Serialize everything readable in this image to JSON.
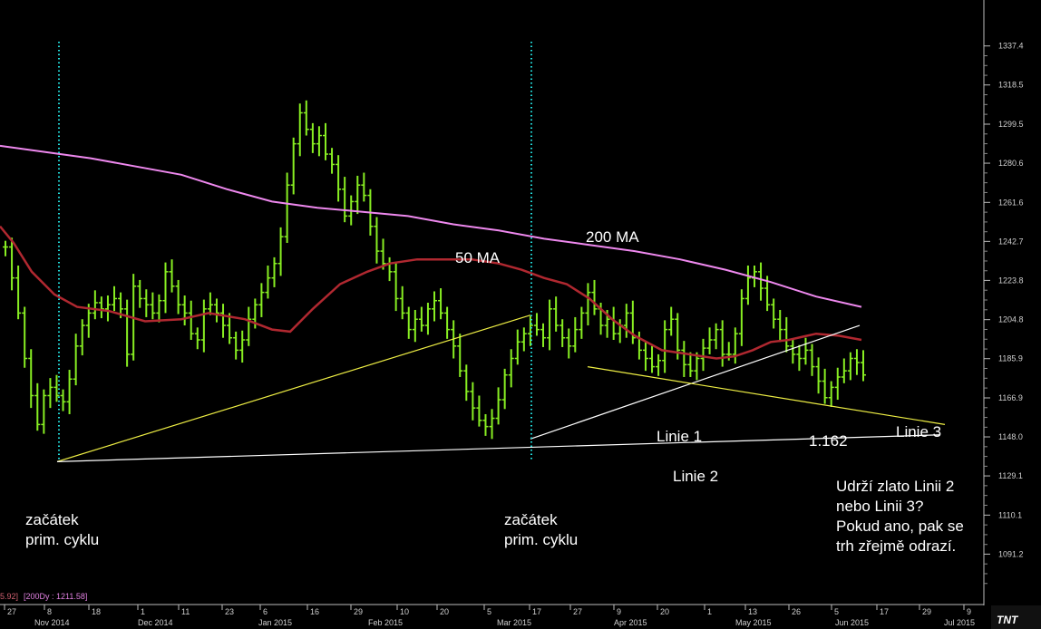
{
  "chart_data": {
    "type": "bar",
    "subtype": "ohlc",
    "ylim": [
      1076,
      1350
    ],
    "y_ticks": [
      "1337.4",
      "1318.5",
      "1299.5",
      "1280.6",
      "1261.6",
      "1242.7",
      "1223.8",
      "1204.8",
      "1185.9",
      "1166.9",
      "1148.0",
      "1129.1",
      "1110.1",
      "1091.2"
    ],
    "x_ticks": [
      "27",
      "8",
      "18",
      "1",
      "11",
      "23",
      "6",
      "16",
      "29",
      "10",
      "20",
      "5",
      "17",
      "27",
      "9",
      "20",
      "1",
      "13",
      "26",
      "5",
      "17",
      "29",
      "9"
    ],
    "x_months": [
      "Nov 2014",
      "Dec 2014",
      "Jan 2015",
      "Feb 2015",
      "Mar 2015",
      "Apr 2015",
      "May 2015",
      "Jun 2015",
      "Jul 2015"
    ],
    "status_text": {
      "left": "5.92]",
      "ma_label": "[200Dy : 1211.58]"
    },
    "grid": false,
    "colors": {
      "bars": "#88ee22",
      "ma50": "#b02830",
      "ma200": "#ee88ee",
      "trend": "#eeee44",
      "support": "#ffffff",
      "cycle": "#22dddd"
    },
    "price_series": [
      [
        1240,
        1225,
        1208,
        1186,
        1168,
        1154,
        1168,
        1172,
        1168,
        1165,
        1176,
        1192,
        1202,
        1208,
        1213,
        1210,
        1212,
        1215,
        1210,
        1188,
        1221,
        1215,
        1212,
        1208,
        1214,
        1228,
        1221,
        1212,
        1208,
        1198,
        1195,
        1210,
        1212,
        1208,
        1202,
        1196,
        1190,
        1195,
        1205,
        1212,
        1218,
        1225,
        1232,
        1245,
        1270,
        1290,
        1305,
        1297,
        1290,
        1294,
        1285,
        1280,
        1268,
        1255,
        1262,
        1270,
        1265,
        1250,
        1238,
        1232,
        1228,
        1215,
        1208,
        1200,
        1205,
        1202,
        1210,
        1214,
        1208,
        1200,
        1192,
        1180,
        1170,
        1162,
        1156,
        1153,
        1157,
        1166,
        1178,
        1186,
        1194,
        1198,
        1202,
        1200,
        1196,
        1210,
        1202,
        1196,
        1192,
        1200,
        1208,
        1218,
        1210,
        1202,
        1205,
        1198,
        1202,
        1208,
        1196,
        1190,
        1186,
        1182,
        1185,
        1200,
        1205,
        1190,
        1183,
        1180,
        1186,
        1191,
        1195,
        1200,
        1188,
        1188,
        1198,
        1215,
        1225,
        1228,
        1220,
        1212,
        1205,
        1200,
        1192,
        1188,
        1186,
        1190,
        1182,
        1175,
        1167,
        1172,
        1177,
        1180,
        1186,
        1184,
        1178
      ],
      "note_none"
    ],
    "ma50": [
      [
        0,
        1250
      ],
      [
        15,
        1242
      ],
      [
        35,
        1228
      ],
      [
        60,
        1217
      ],
      [
        85,
        1211
      ],
      [
        120,
        1209
      ],
      [
        160,
        1204
      ],
      [
        200,
        1205
      ],
      [
        230,
        1208
      ],
      [
        270,
        1205
      ],
      [
        300,
        1200
      ],
      [
        320,
        1199
      ],
      [
        345,
        1210
      ],
      [
        375,
        1222
      ],
      [
        405,
        1228
      ],
      [
        430,
        1232
      ],
      [
        460,
        1234
      ],
      [
        490,
        1234
      ],
      [
        520,
        1234
      ],
      [
        550,
        1232
      ],
      [
        575,
        1229
      ],
      [
        600,
        1225
      ],
      [
        625,
        1222
      ],
      [
        650,
        1215
      ],
      [
        675,
        1205
      ],
      [
        700,
        1197
      ],
      [
        730,
        1190
      ],
      [
        760,
        1188
      ],
      [
        790,
        1186
      ],
      [
        810,
        1187
      ],
      [
        830,
        1190
      ],
      [
        850,
        1194
      ],
      [
        870,
        1195
      ],
      [
        900,
        1198
      ],
      [
        925,
        1197
      ],
      [
        950,
        1195
      ]
    ],
    "ma200": [
      [
        0,
        1289
      ],
      [
        50,
        1286
      ],
      [
        100,
        1283
      ],
      [
        150,
        1279
      ],
      [
        200,
        1275
      ],
      [
        250,
        1268
      ],
      [
        300,
        1262
      ],
      [
        350,
        1259
      ],
      [
        400,
        1257
      ],
      [
        450,
        1255
      ],
      [
        500,
        1251
      ],
      [
        550,
        1248
      ],
      [
        600,
        1244
      ],
      [
        650,
        1241
      ],
      [
        700,
        1238
      ],
      [
        750,
        1234
      ],
      [
        800,
        1229
      ],
      [
        850,
        1223
      ],
      [
        900,
        1216
      ],
      [
        950,
        1211
      ]
    ],
    "trend_lines": [
      {
        "name": "uptrend-1",
        "color": "#eeee44",
        "from": [
          63,
          1136
        ],
        "to": [
          585,
          1207
        ]
      },
      {
        "name": "linie-1",
        "color": "#ffffff",
        "from": [
          585,
          1147
        ],
        "to": [
          948,
          1202
        ]
      },
      {
        "name": "linie-3",
        "color": "#eeee44",
        "from": [
          648,
          1182
        ],
        "to": [
          1042,
          1154
        ]
      },
      {
        "name": "linie-2",
        "color": "#ffffff",
        "from": [
          63,
          1136
        ],
        "to": [
          1037,
          1149
        ]
      }
    ],
    "cycle_lines_x": [
      65,
      586
    ],
    "annotations": {
      "ma50": "50 MA",
      "ma200": "200 MA",
      "linie1": "Linie 1",
      "linie2": "Linie 2",
      "linie3": "Linie 3",
      "price_low": "1.162",
      "cycle_start_1a": "začátek",
      "cycle_start_1b": "prim. cyklu",
      "cycle_start_2a": "začátek",
      "cycle_start_2b": "prim. cyklu",
      "question_1": "Udrží zlato Linii 2",
      "question_2": "nebo Linii 3?",
      "question_3": "Pokud ano, pak se",
      "question_4": "trh zřejmě odrazí."
    },
    "logo": "TNT"
  }
}
